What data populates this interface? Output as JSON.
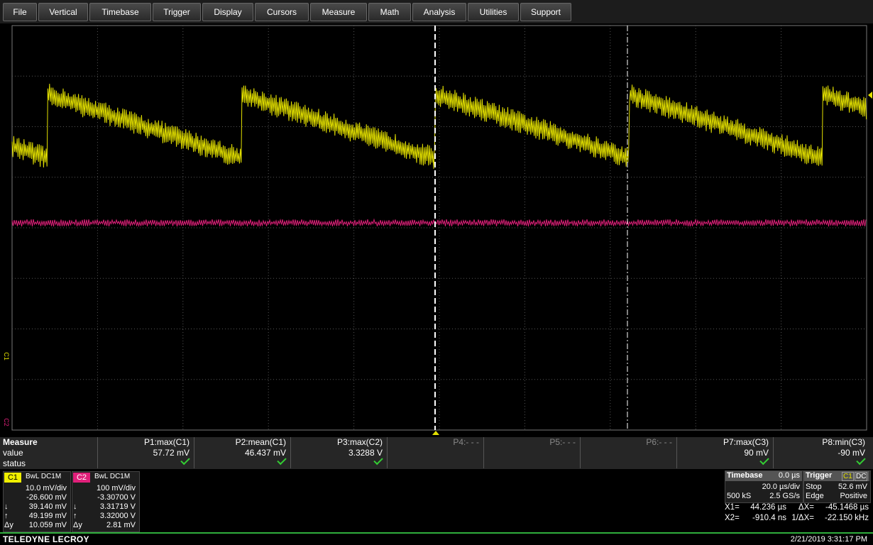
{
  "menu": [
    "File",
    "Vertical",
    "Timebase",
    "Trigger",
    "Display",
    "Cursors",
    "Measure",
    "Math",
    "Analysis",
    "Utilities",
    "Support"
  ],
  "side_labels": [
    "C1",
    "C2"
  ],
  "measure": {
    "title": "Measure",
    "row_labels": [
      "value",
      "status"
    ],
    "params": [
      {
        "name": "P1:max(C1)",
        "value": "57.72 mV"
      },
      {
        "name": "P2:mean(C1)",
        "value": "46.437 mV"
      },
      {
        "name": "P3:max(C2)",
        "value": "3.3288 V"
      },
      {
        "name": "P4:- - -"
      },
      {
        "name": "P5:- - -"
      },
      {
        "name": "P6:- - -"
      },
      {
        "name": "P7:max(C3)",
        "value": "90 mV"
      },
      {
        "name": "P8:min(C3)",
        "value": "-90 mV"
      }
    ]
  },
  "channels": [
    {
      "label": "C1",
      "flags": "BwL  DC1M",
      "rows": [
        {
          "val": "10.0 mV/div"
        },
        {
          "val": "-26.600 mV"
        },
        {
          "sym": "↓",
          "val": "39.140 mV"
        },
        {
          "sym": "↑",
          "val": "49.199 mV"
        },
        {
          "sym": "Δy",
          "val": "10.059 mV"
        }
      ]
    },
    {
      "label": "C2",
      "flags": "BwL  DC1M",
      "rows": [
        {
          "val": "100 mV/div"
        },
        {
          "val": "-3.30700 V"
        },
        {
          "sym": "↓",
          "val": "3.31719 V"
        },
        {
          "sym": "↑",
          "val": "3.32000 V"
        },
        {
          "sym": "Δy",
          "val": "2.81 mV"
        }
      ]
    }
  ],
  "timebase": {
    "title": "Timebase",
    "delay": "0.0 µs",
    "scale": "20.0 µs/div",
    "samples": "500 kS",
    "rate": "2.5 GS/s"
  },
  "trigger": {
    "title": "Trigger",
    "source": "C1",
    "coupling": "DC",
    "mode": "Stop",
    "level": "52.6 mV",
    "type": "Edge",
    "slope": "Positive"
  },
  "cursors": [
    [
      "X1=",
      "44.236 µs",
      "ΔX=",
      "-45.1468 µs"
    ],
    [
      "X2=",
      "-910.4 ns",
      "1/ΔX=",
      "-22.150 kHz"
    ]
  ],
  "footer": {
    "brand": "TELEDYNE LECROY",
    "datetime": "2/21/2019 3:31:17 PM"
  }
}
